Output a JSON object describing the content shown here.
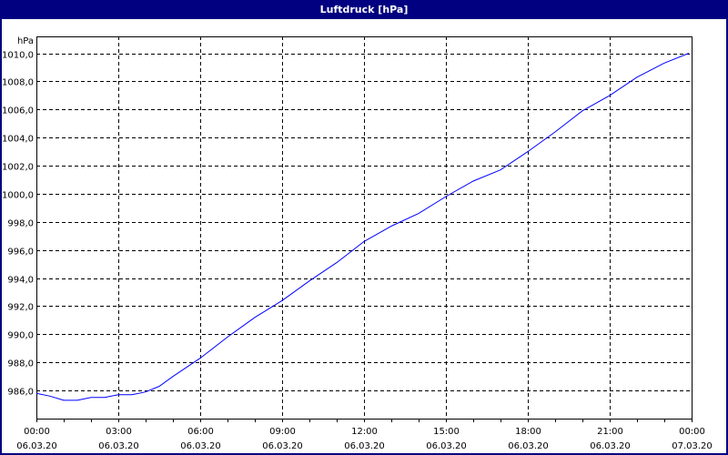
{
  "window": {
    "title": "Luftdruck [hPa]"
  },
  "chart_data": {
    "type": "line",
    "title": "Luftdruck [hPa]",
    "ylabel": "hPa",
    "ylim": [
      984,
      1011.2
    ],
    "yticks": [
      986,
      988,
      990,
      992,
      994,
      996,
      998,
      1000,
      1002,
      1004,
      1006,
      1008,
      1010
    ],
    "ytick_labels": [
      "986,0",
      "988,0",
      "990,0",
      "992,0",
      "994,0",
      "996,0",
      "998,0",
      "1000,0",
      "1002,0",
      "1004,0",
      "1006,0",
      "1008,0",
      "1010,0"
    ],
    "xlim": [
      0,
      24
    ],
    "xticks": [
      {
        "h": 0,
        "time": "00:00",
        "date": "06.03.20"
      },
      {
        "h": 3,
        "time": "03:00",
        "date": "06.03.20"
      },
      {
        "h": 6,
        "time": "06:00",
        "date": "06.03.20"
      },
      {
        "h": 9,
        "time": "09:00",
        "date": "06.03.20"
      },
      {
        "h": 12,
        "time": "12:00",
        "date": "06.03.20"
      },
      {
        "h": 15,
        "time": "15:00",
        "date": "06.03.20"
      },
      {
        "h": 18,
        "time": "18:00",
        "date": "06.03.20"
      },
      {
        "h": 21,
        "time": "21:00",
        "date": "06.03.20"
      },
      {
        "h": 24,
        "time": "00:00",
        "date": "07.03.20"
      }
    ],
    "grid": true,
    "line_color": "#0000ff",
    "x": [
      0,
      0.5,
      1,
      1.5,
      2,
      2.5,
      3,
      3.5,
      4,
      4.5,
      5,
      6,
      7,
      8,
      9,
      10,
      11,
      12,
      13,
      14,
      15,
      16,
      17,
      18,
      19,
      20,
      21,
      22,
      23,
      23.9
    ],
    "values": [
      985.8,
      985.6,
      985.3,
      985.3,
      985.5,
      985.5,
      985.7,
      985.7,
      985.9,
      986.3,
      987.0,
      988.3,
      989.8,
      991.2,
      992.4,
      993.8,
      995.1,
      996.6,
      997.7,
      998.6,
      999.8,
      1000.9,
      1001.7,
      1003.0,
      1004.4,
      1005.9,
      1007.0,
      1008.3,
      1009.3,
      1010.0
    ]
  }
}
